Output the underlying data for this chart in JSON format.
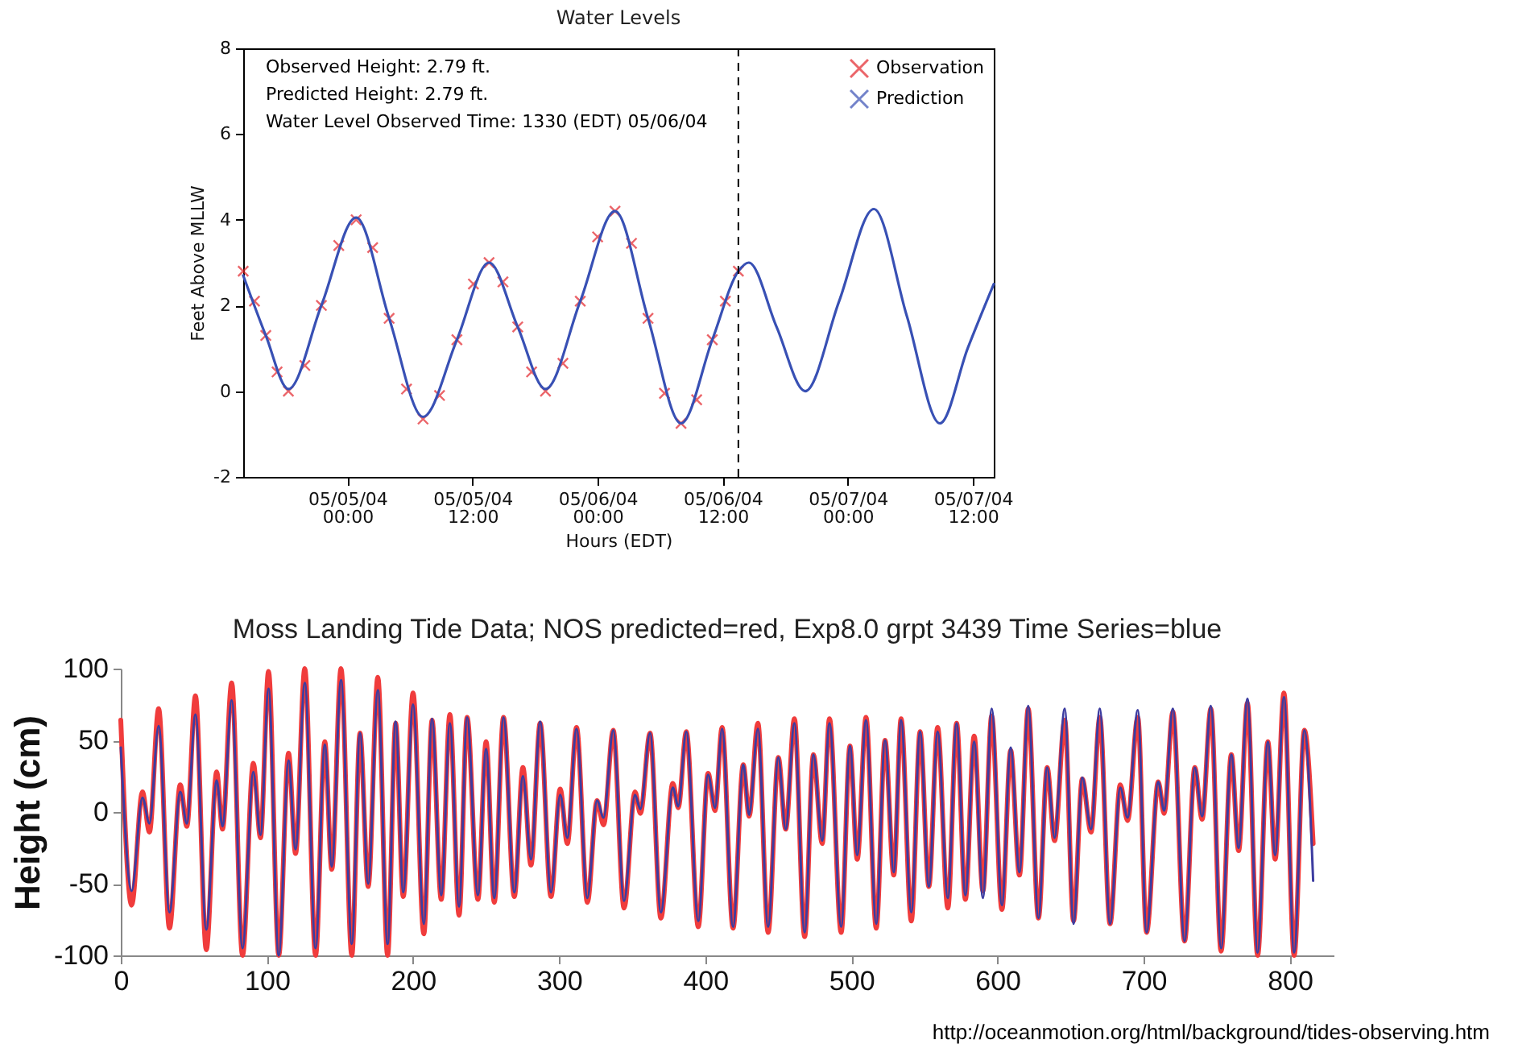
{
  "chart_data": [
    {
      "type": "line",
      "title": "Water Levels",
      "xlabel": "Hours (EDT)",
      "ylabel": "Feet Above MLLW",
      "xlim": [
        "--05-04T14:00",
        "--05-07T14:00"
      ],
      "xticks": [
        {
          "value": "--05-05T00:00",
          "label": "05/05/04\n00:00"
        },
        {
          "value": "--05-05T12:00",
          "label": "05/05/04\n12:00"
        },
        {
          "value": "--05-06T00:00",
          "label": "05/06/04\n00:00"
        },
        {
          "value": "--05-06T12:00",
          "label": "05/06/04\n12:00"
        },
        {
          "value": "--05-07T00:00",
          "label": "05/07/04\n00:00"
        },
        {
          "value": "--05-07T12:00",
          "label": "05/07/04\n12:00"
        }
      ],
      "ylim": [
        -2,
        8
      ],
      "yticks": [
        -2,
        0,
        2,
        4,
        6,
        8
      ],
      "legend": "top right",
      "ref_lines": [
        {
          "axis": "x",
          "value": "--05-06T13:30",
          "line_style": "dashed",
          "color": "#000000"
        }
      ],
      "annotations": [
        "Observed Height: 2.79 ft.",
        "Predicted Height: 2.79 ft.",
        "Water Level Observed Time: 1330 (EDT) 05/06/04"
      ],
      "series": [
        {
          "name": "Observation",
          "type": "scatter",
          "marker": "cross",
          "color": "#e3242b",
          "x": [
            "--05-04T14:00",
            "--05-04T15:05",
            "--05-04T16:10",
            "--05-04T17:15",
            "--05-04T18:20",
            "--05-04T19:55",
            "--05-04T21:30",
            "--05-04T23:10",
            "--05-05T00:50",
            "--05-05T02:25",
            "--05-05T04:00",
            "--05-05T05:40",
            "--05-05T07:15",
            "--05-05T08:50",
            "--05-05T10:30",
            "--05-05T12:05",
            "--05-05T13:35",
            "--05-05T14:55",
            "--05-05T16:20",
            "--05-05T17:40",
            "--05-05T19:00",
            "--05-05T20:40",
            "--05-05T22:20",
            "--05-06T00:00",
            "--05-06T01:40",
            "--05-06T03:15",
            "--05-06T04:50",
            "--05-06T06:25",
            "--05-06T08:00",
            "--05-06T09:30",
            "--05-06T11:00",
            "--05-06T12:15",
            "--05-06T13:30"
          ],
          "values": [
            2.8,
            2.1,
            1.3,
            0.45,
            0.0,
            0.6,
            2.0,
            3.4,
            4.0,
            3.35,
            1.7,
            0.05,
            -0.65,
            -0.1,
            1.2,
            2.5,
            3.0,
            2.55,
            1.5,
            0.45,
            0.0,
            0.65,
            2.1,
            3.6,
            4.2,
            3.45,
            1.7,
            -0.05,
            -0.75,
            -0.2,
            1.2,
            2.1,
            2.8
          ]
        },
        {
          "name": "Prediction",
          "color": "#3850b4",
          "x": [
            "--05-04T14:00",
            "--05-04T16:10",
            "--05-04T18:20",
            "--05-04T21:30",
            "--05-05T00:50",
            "--05-05T04:00",
            "--05-05T07:15",
            "--05-05T10:30",
            "--05-05T13:35",
            "--05-05T16:20",
            "--05-05T19:00",
            "--05-05T22:20",
            "--05-06T01:40",
            "--05-06T04:50",
            "--05-06T08:00",
            "--05-06T11:00",
            "--05-06T13:30",
            "--05-06T14:30",
            "--05-06T17:10",
            "--05-06T19:55",
            "--05-06T23:10",
            "--05-07T02:30",
            "--05-07T05:40",
            "--05-07T08:50",
            "--05-07T11:30",
            "--05-07T14:00"
          ],
          "values": [
            2.7,
            1.3,
            0.05,
            2.0,
            4.05,
            1.7,
            -0.6,
            1.2,
            3.0,
            1.5,
            0.05,
            2.1,
            4.2,
            1.7,
            -0.75,
            1.2,
            2.8,
            3.0,
            1.5,
            0.0,
            2.1,
            4.25,
            1.75,
            -0.75,
            1.0,
            2.5
          ]
        }
      ]
    },
    {
      "type": "line",
      "title": "Moss Landing Tide Data; NOS predicted=red, Exp8.0 grpt 3439 Time Series=blue",
      "ylabel": "Height (cm)",
      "xlim": [
        0,
        830
      ],
      "xticks": [
        0,
        100,
        200,
        300,
        400,
        500,
        600,
        700,
        800
      ],
      "ylim": [
        -100,
        100
      ],
      "yticks": [
        -100,
        -50,
        0,
        50,
        100
      ],
      "annotations": [
        "http://oceanmotion.org/html/background/tides-observing.htm"
      ],
      "x": [
        0,
        7.4,
        14.8,
        19.6,
        25.9,
        33.3,
        40.7,
        45.2,
        51.1,
        58.5,
        65.6,
        69.6,
        75.9,
        83.3,
        90.7,
        95.6,
        101.1,
        108.1,
        114.8,
        119.6,
        125.9,
        133.3,
        139.6,
        144.4,
        150.7,
        158.1,
        163.7,
        169.3,
        175.9,
        182.6,
        188.1,
        193.3,
        200,
        207.4,
        213,
        219.3,
        225.2,
        231.5,
        237,
        244.4,
        250,
        255.6,
        261.9,
        269.3,
        275.2,
        280.7,
        287,
        294.4,
        300.7,
        305.6,
        311.9,
        319.3,
        325.9,
        330.4,
        337,
        344.4,
        351.9,
        355.6,
        362.2,
        369.6,
        377.8,
        381.5,
        387,
        395.2,
        401.9,
        406.7,
        411.5,
        419,
        426,
        430,
        436,
        443,
        450,
        455,
        461,
        468,
        474,
        480,
        485,
        493,
        499,
        504,
        510,
        517,
        523,
        529,
        534,
        541,
        547,
        553,
        559,
        566,
        572,
        578,
        584,
        590,
        596,
        603,
        609,
        615,
        621,
        628,
        634,
        639,
        646,
        652,
        658,
        664,
        670,
        677,
        684,
        689,
        696,
        702,
        710,
        714,
        720,
        728,
        735,
        740,
        746,
        753,
        760,
        765,
        771,
        778,
        785,
        790,
        796,
        803,
        810,
        816
      ],
      "series": [
        {
          "color": "#f03c3c",
          "values": [
            64,
            -65,
            14,
            -14,
            72,
            -81,
            19,
            -10,
            81,
            -96,
            28,
            -12,
            90,
            -100,
            34,
            -18,
            98,
            -100,
            41,
            -29,
            100,
            -100,
            49,
            -40,
            100,
            -100,
            55,
            -52,
            94,
            -100,
            62,
            -59,
            83,
            -85,
            64,
            -61,
            68,
            -72,
            66,
            -61,
            49,
            -63,
            66,
            -59,
            31,
            -37,
            62,
            -59,
            16,
            -22,
            59,
            -63,
            8,
            -9,
            57,
            -67,
            14,
            -1,
            55,
            -74,
            20,
            3,
            56,
            -80,
            27,
            1,
            59,
            -81,
            33,
            -3,
            62,
            -84,
            38,
            -12,
            65,
            -87,
            40,
            -22,
            65,
            -84,
            46,
            -33,
            66,
            -81,
            50,
            -44,
            65,
            -76,
            56,
            -52,
            59,
            -67,
            62,
            -61,
            53,
            -55,
            67,
            -68,
            43,
            -44,
            72,
            -74,
            31,
            -20,
            64,
            -76,
            23,
            -14,
            66,
            -78,
            19,
            -6,
            66,
            -84,
            21,
            -1,
            70,
            -90,
            31,
            -5,
            72,
            -97,
            40,
            -27,
            76,
            -100,
            49,
            -33,
            83,
            -100,
            57,
            -22
          ]
        },
        {
          "color": "#3c3ca0",
          "values": [
            45,
            -55,
            10,
            -8,
            60,
            -70,
            14,
            -8,
            68,
            -82,
            22,
            -10,
            78,
            -95,
            28,
            -16,
            86,
            -100,
            36,
            -26,
            90,
            -95,
            47,
            -38,
            92,
            -92,
            55,
            -50,
            85,
            -92,
            63,
            -56,
            75,
            -78,
            65,
            -58,
            62,
            -66,
            66,
            -58,
            44,
            -60,
            66,
            -56,
            25,
            -33,
            63,
            -56,
            12,
            -18,
            58,
            -60,
            8,
            -4,
            57,
            -62,
            12,
            2,
            55,
            -70,
            17,
            4,
            56,
            -76,
            26,
            3,
            58,
            -80,
            33,
            -2,
            58,
            -80,
            38,
            -12,
            62,
            -84,
            40,
            -20,
            62,
            -80,
            46,
            -30,
            64,
            -78,
            50,
            -42,
            64,
            -70,
            56,
            -52,
            56,
            -60,
            62,
            -58,
            49,
            -60,
            72,
            -65,
            45,
            -42,
            74,
            -74,
            31,
            -18,
            72,
            -78,
            24,
            -12,
            72,
            -78,
            17,
            -4,
            71,
            -84,
            21,
            1,
            72,
            -90,
            31,
            -3,
            74,
            -95,
            40,
            -25,
            79,
            -98,
            49,
            -30,
            80,
            -98,
            57,
            -48
          ]
        }
      ]
    }
  ]
}
